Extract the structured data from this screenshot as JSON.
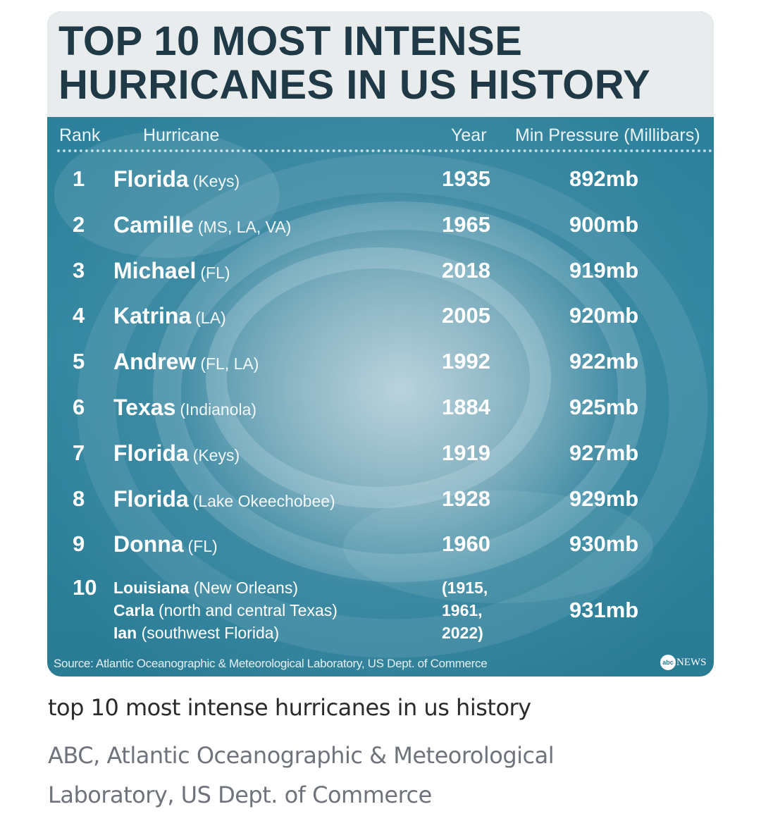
{
  "chart_data": {
    "type": "table",
    "title": "TOP 10 MOST INTENSE HURRICANES IN US HISTORY",
    "columns": [
      "Rank",
      "Hurricane",
      "Year",
      "Min Pressure (Millibars)"
    ],
    "rows": [
      {
        "rank": "1",
        "name": "Florida",
        "location": "(Keys)",
        "year": "1935",
        "pressure": "892mb"
      },
      {
        "rank": "2",
        "name": "Camille",
        "location": "(MS, LA, VA)",
        "year": "1965",
        "pressure": "900mb"
      },
      {
        "rank": "3",
        "name": "Michael",
        "location": "(FL)",
        "year": "2018",
        "pressure": "919mb"
      },
      {
        "rank": "4",
        "name": "Katrina",
        "location": "(LA)",
        "year": "2005",
        "pressure": "920mb"
      },
      {
        "rank": "5",
        "name": "Andrew",
        "location": "(FL, LA)",
        "year": "1992",
        "pressure": "922mb"
      },
      {
        "rank": "6",
        "name": "Texas",
        "location": "(Indianola)",
        "year": "1884",
        "pressure": "925mb"
      },
      {
        "rank": "7",
        "name": "Florida",
        "location": "(Keys)",
        "year": "1919",
        "pressure": "927mb"
      },
      {
        "rank": "8",
        "name": "Florida",
        "location": "(Lake Okeechobee)",
        "year": "1928",
        "pressure": "929mb"
      },
      {
        "rank": "9",
        "name": "Donna",
        "location": "(FL)",
        "year": "1960",
        "pressure": "930mb"
      }
    ],
    "tenth": {
      "rank": "10",
      "entries": [
        {
          "name": "Louisiana",
          "location": "(New Orleans)"
        },
        {
          "name": "Carla",
          "location": "(north and central Texas)"
        },
        {
          "name": "Ian",
          "location": "(southwest Florida)"
        }
      ],
      "years": [
        "(1915,",
        "1961,",
        "2022)"
      ],
      "pressure": "931mb"
    },
    "source": "Source: Atlantic Oceanographic & Meteorological Laboratory, US Dept. of Commerce"
  },
  "logo": {
    "mark": "abc",
    "text": "NEWS"
  },
  "post": {
    "caption": "top 10 most intense hurricanes in us history",
    "credit": "ABC, Atlantic Oceanographic & Meteorological Laboratory, US Dept. of Commerce"
  },
  "colors": {
    "background": "#2c7d97",
    "title_band": "#e9ecec",
    "title_text": "#1f3a46"
  }
}
